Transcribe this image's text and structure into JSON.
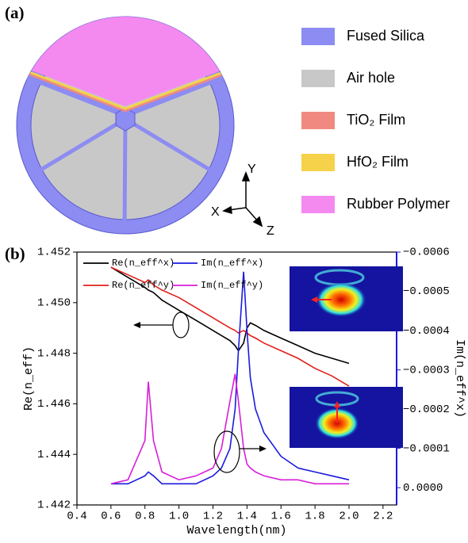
{
  "panel_a": {
    "label": "(a)",
    "legend": [
      {
        "label": "Fused Silica",
        "color": "#8c8cf2"
      },
      {
        "label": "Air hole",
        "color": "#c8c8c8"
      },
      {
        "label": "TiO₂ Film",
        "color": "#f08a80"
      },
      {
        "label": "HfO₂ Film",
        "color": "#f5d24a"
      },
      {
        "label": "Rubber Polymer",
        "color": "#f489f0"
      }
    ],
    "axes": {
      "x": "X",
      "y": "Y",
      "z": "Z"
    }
  },
  "panel_b": {
    "label": "(b)"
  },
  "chart_data": {
    "type": "line",
    "x_label": "Wavelength(nm)",
    "y_label": "Re(n_eff)",
    "y2_label": "Im(n_eff^x)",
    "x": [
      0.6,
      0.7,
      0.8,
      0.82,
      0.85,
      0.9,
      1.0,
      1.1,
      1.2,
      1.25,
      1.3,
      1.33,
      1.35,
      1.38,
      1.4,
      1.42,
      1.45,
      1.5,
      1.6,
      1.7,
      1.8,
      1.9,
      2.0
    ],
    "xlim": [
      0.4,
      2.28
    ],
    "xticks": [
      0.4,
      0.6,
      0.8,
      {
        "value": 1,
        "label": "1.0"
      },
      1.2,
      1.4,
      1.6,
      1.8,
      {
        "value": 2,
        "label": "2.0"
      },
      2.2
    ],
    "ylim": [
      1.442,
      1.452
    ],
    "yticks": [
      1.442,
      1.444,
      1.446,
      1.448,
      {
        "value": 1.45,
        "label": "1.450"
      },
      1.452
    ],
    "y2lim": [
      4.4e-05,
      -0.0006
    ],
    "y2ticks": [
      {
        "value": 0,
        "label": "0.0000"
      },
      {
        "value": -0.0001,
        "label": "−0.0001"
      },
      {
        "value": -0.0002,
        "label": "−0.0002"
      },
      {
        "value": -0.0003,
        "label": "−0.0003"
      },
      {
        "value": -0.0004,
        "label": "−0.0004"
      },
      {
        "value": -0.0005,
        "label": "−0.0005"
      },
      {
        "value": -0.0006,
        "label": "−0.0006"
      }
    ],
    "legend": "upper left",
    "series": [
      {
        "name": "Re(n_eff^x)",
        "color": "#000000",
        "axis": "y",
        "values": [
          1.4514,
          1.451,
          1.4506,
          1.4505,
          1.4504,
          1.4501,
          1.4497,
          1.4493,
          1.4489,
          1.4487,
          1.4485,
          1.4483,
          1.4481,
          1.4484,
          1.449,
          1.4492,
          1.4491,
          1.4489,
          1.4486,
          1.4483,
          1.448,
          1.4478,
          1.4476
        ]
      },
      {
        "name": "Re(n_eff^y)",
        "color": "#e0201a",
        "axis": "y",
        "values": [
          1.4514,
          1.4511,
          1.4508,
          1.4509,
          1.4507,
          1.4505,
          1.4502,
          1.4498,
          1.4494,
          1.4492,
          1.449,
          1.4489,
          1.4488,
          1.4489,
          1.4488,
          1.4487,
          1.4486,
          1.4484,
          1.4481,
          1.4478,
          1.4474,
          1.4471,
          1.4467
        ]
      },
      {
        "name": "Im(n_eff^x)",
        "color": "#1a1ae0",
        "axis": "y2",
        "values": [
          -1e-05,
          -1e-05,
          -3e-05,
          -4e-05,
          -3e-05,
          -1e-05,
          -1e-05,
          -1e-05,
          -3e-05,
          -5e-05,
          -0.0001,
          -0.0002,
          -0.00035,
          -0.00055,
          -0.0004,
          -0.00028,
          -0.0002,
          -0.00014,
          -8e-05,
          -5e-05,
          -4e-05,
          -3e-05,
          -2e-05
        ]
      },
      {
        "name": "Im(n_eff^y)",
        "color": "#d81ed8",
        "axis": "y2",
        "values": [
          -1e-05,
          -2e-05,
          -0.00012,
          -0.00027,
          -0.00012,
          -4e-05,
          -2e-05,
          -3e-05,
          -5e-05,
          -0.0001,
          -0.00022,
          -0.00029,
          -0.00022,
          -0.0001,
          -6e-05,
          -5e-05,
          -4e-05,
          -3e-05,
          -2e-05,
          -2e-05,
          -1e-05,
          -1e-05,
          -1e-05
        ]
      }
    ]
  }
}
